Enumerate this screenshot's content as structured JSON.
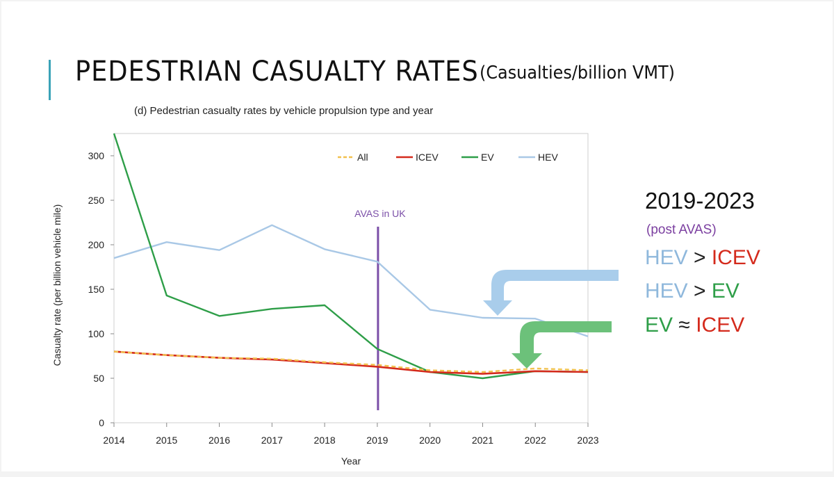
{
  "slide": {
    "title": "PEDESTRIAN CASUALTY RATES",
    "title_unit": "(Casualties/billion VMT)",
    "subtitle": "(d) Pedestrian casualty rates by vehicle propulsion type and year"
  },
  "chart_data": {
    "type": "line",
    "title": "(d) Pedestrian casualty rates by vehicle propulsion type and year",
    "xlabel": "Year",
    "ylabel": "Casualty rate (per billion vehicle mile)",
    "x": [
      2014,
      2015,
      2016,
      2017,
      2018,
      2019,
      2020,
      2021,
      2022,
      2023
    ],
    "ylim": [
      0,
      325
    ],
    "yticks": [
      0,
      50,
      100,
      150,
      200,
      250,
      300
    ],
    "legend_position": "top",
    "series": [
      {
        "name": "All",
        "color": "#f2c14e",
        "dashed": true,
        "values": [
          80,
          76,
          73,
          72,
          68,
          65,
          59,
          57,
          61,
          59
        ]
      },
      {
        "name": "ICEV",
        "color": "#d42a1c",
        "dashed": false,
        "values": [
          80,
          76,
          73,
          71,
          67,
          63,
          57,
          55,
          58,
          57
        ]
      },
      {
        "name": "EV",
        "color": "#2e9e48",
        "dashed": false,
        "values": [
          325,
          143,
          120,
          128,
          132,
          83,
          57,
          50,
          58,
          57
        ]
      },
      {
        "name": "HEV",
        "color": "#a9c8e6",
        "dashed": false,
        "values": [
          185,
          203,
          194,
          222,
          195,
          181,
          127,
          118,
          117,
          97
        ]
      }
    ],
    "annotations": [
      {
        "text": "AVAS in UK",
        "x": 2019,
        "color": "#7b4fa8"
      }
    ]
  },
  "side_panel": {
    "range": "2019-2023",
    "note": "(post AVAS)",
    "rows": [
      {
        "left": "HEV",
        "left_color": "#8fb8dc",
        "op": ">",
        "right": "ICEV",
        "right_color": "#d42a1c"
      },
      {
        "left": "HEV",
        "left_color": "#8fb8dc",
        "op": ">",
        "right": "EV",
        "right_color": "#2e9e48"
      },
      {
        "left": "EV",
        "left_color": "#2e9e48",
        "op": "≈",
        "right": "ICEV",
        "right_color": "#d42a1c"
      }
    ],
    "arrow_colors": {
      "hev": "#a9cdeb",
      "ev": "#6cc17a"
    }
  }
}
